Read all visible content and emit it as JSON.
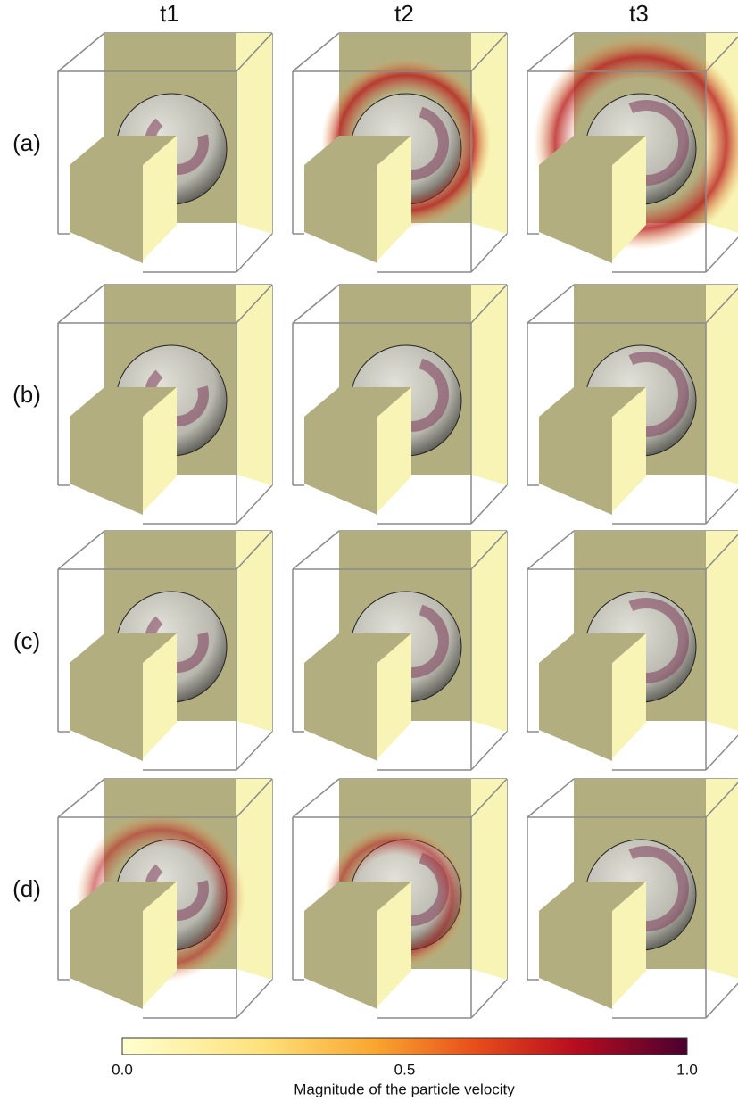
{
  "columns": [
    "t1",
    "t2",
    "t3"
  ],
  "rows": [
    "(a)",
    "(b)",
    "(c)",
    "(d)"
  ],
  "colorbar": {
    "ticks": [
      "0.0",
      "0.5",
      "1.0"
    ],
    "label": "Magnitude of the particle velocity"
  }
}
